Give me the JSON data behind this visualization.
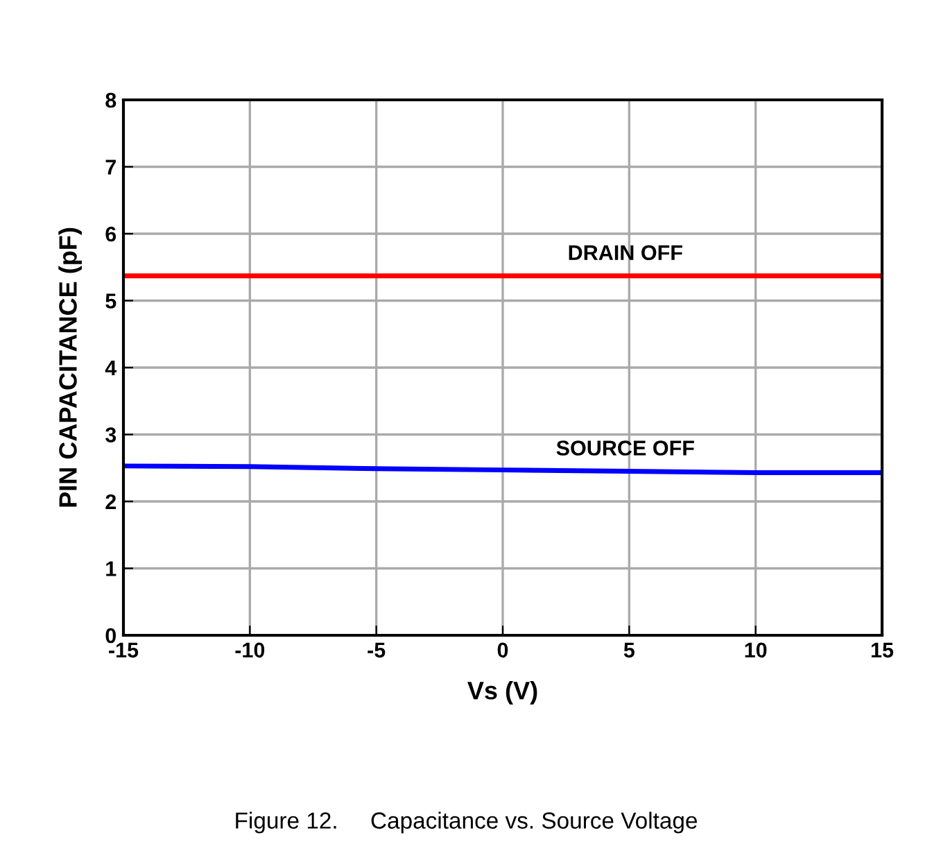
{
  "chart_data": {
    "type": "line",
    "xlabel": "Vs (V)",
    "ylabel": "PIN CAPACITANCE (pF)",
    "x": [
      -15,
      -10,
      -5,
      0,
      5,
      10,
      15
    ],
    "series": [
      {
        "name": "DRAIN OFF",
        "color": "#ff0000",
        "values": [
          5.37,
          5.37,
          5.37,
          5.37,
          5.37,
          5.37,
          5.37
        ]
      },
      {
        "name": "SOURCE OFF",
        "color": "#0000ff",
        "values": [
          2.53,
          2.52,
          2.49,
          2.47,
          2.45,
          2.43,
          2.43
        ]
      }
    ],
    "xlim": [
      -15,
      15
    ],
    "xticks": [
      -15,
      -10,
      -5,
      0,
      5,
      10,
      15
    ],
    "ylim": [
      0,
      8
    ],
    "yticks": [
      0,
      1,
      2,
      3,
      4,
      5,
      6,
      7,
      8
    ],
    "grid": true,
    "line_style": "solid",
    "marker": "none",
    "legend": false,
    "annotations": [
      "Figure 12.     Capacitance vs. Source Voltage"
    ]
  }
}
